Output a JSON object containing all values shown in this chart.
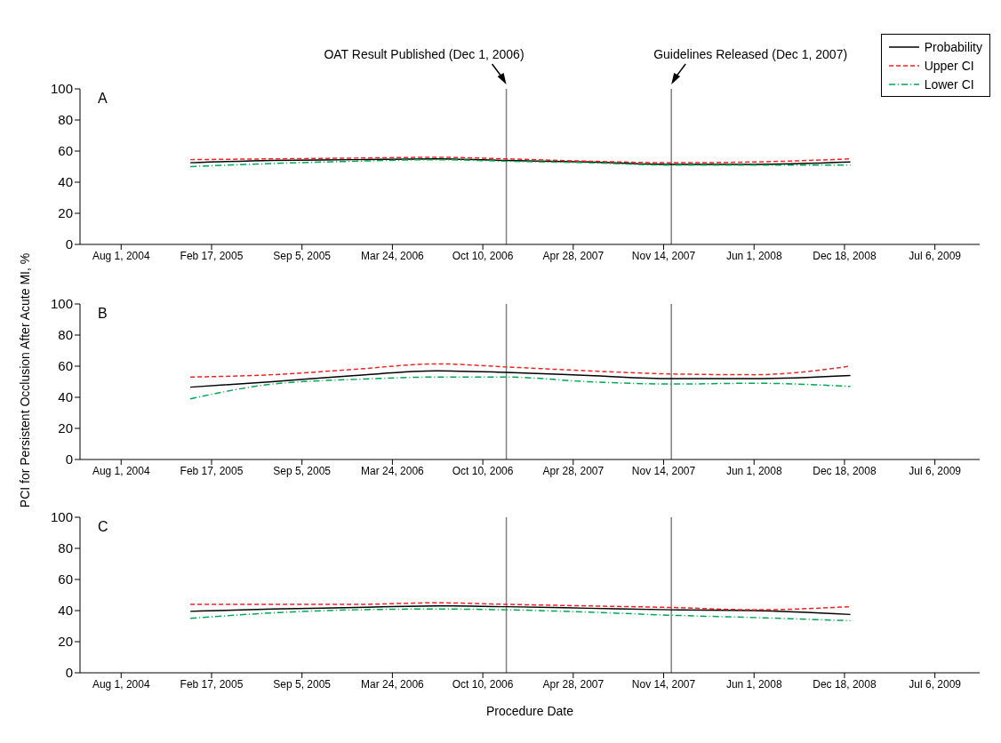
{
  "chart_data": [
    {
      "type": "line",
      "title": "A",
      "x": [
        "2005-01-01",
        "2005-07-01",
        "2006-01-01",
        "2006-07-01",
        "2006-12-01",
        "2007-06-01",
        "2007-12-01",
        "2008-06-01",
        "2008-12-31"
      ],
      "series": [
        {
          "name": "Probability",
          "color": "#000000",
          "line_style": "solid",
          "values": [
            52.5,
            54,
            54.5,
            55,
            54,
            53,
            51.5,
            51.5,
            53
          ]
        },
        {
          "name": "Upper CI",
          "color": "#e8262a",
          "line_style": "dashed",
          "values": [
            54.5,
            55,
            55.5,
            56,
            55,
            53.5,
            52.5,
            53,
            55
          ]
        },
        {
          "name": "Lower CI",
          "color": "#00a651",
          "line_style": "dashdot",
          "values": [
            50,
            52,
            53.5,
            54.5,
            53.5,
            52.5,
            51,
            51,
            51
          ]
        }
      ],
      "xlim": [
        "2004-05-02",
        "2009-10-13"
      ],
      "xticks": [
        {
          "value": "2004-08-01",
          "label": "Aug 1, 2004"
        },
        {
          "value": "2005-02-17",
          "label": "Feb 17, 2005"
        },
        {
          "value": "2005-09-05",
          "label": "Sep 5, 2005"
        },
        {
          "value": "2006-03-24",
          "label": "Mar 24, 2006"
        },
        {
          "value": "2006-10-10",
          "label": "Oct 10, 2006"
        },
        {
          "value": "2007-04-28",
          "label": "Apr 28, 2007"
        },
        {
          "value": "2007-11-14",
          "label": "Nov 14, 2007"
        },
        {
          "value": "2008-06-01",
          "label": "Jun 1, 2008"
        },
        {
          "value": "2008-12-18",
          "label": "Dec 18, 2008"
        },
        {
          "value": "2009-07-06",
          "label": "Jul 6, 2009"
        }
      ],
      "ylim": [
        0,
        100
      ],
      "yticks": [
        0,
        20,
        40,
        60,
        80,
        100
      ],
      "ref_lines": [
        {
          "axis": "x",
          "value": "2006-12-01",
          "label": "OAT Result Published (Dec 1, 2006)",
          "color": "#808080"
        },
        {
          "axis": "x",
          "value": "2007-12-01",
          "label": "Guidelines Released (Dec 1, 2007)",
          "color": "#808080"
        }
      ],
      "legend": "top right",
      "grid": false
    },
    {
      "type": "line",
      "title": "B",
      "ylabel": "PCI for Persistent Occlusion After Acute MI, %",
      "x": [
        "2005-01-01",
        "2005-07-01",
        "2006-01-01",
        "2006-07-01",
        "2006-12-01",
        "2007-06-01",
        "2007-12-01",
        "2008-06-01",
        "2008-12-31"
      ],
      "series": [
        {
          "color": "#000000",
          "line_style": "solid",
          "values": [
            46.5,
            50,
            54,
            57,
            56,
            54,
            52,
            52,
            54
          ]
        },
        {
          "color": "#e8262a",
          "line_style": "dashed",
          "values": [
            53,
            54.5,
            58,
            61.5,
            59.5,
            57,
            55,
            54.5,
            60
          ]
        },
        {
          "color": "#00a651",
          "line_style": "dashdot",
          "values": [
            39,
            48.5,
            51.5,
            53,
            53,
            50,
            48.5,
            49,
            47
          ]
        }
      ],
      "xlim": [
        "2004-05-02",
        "2009-10-13"
      ],
      "xticks": [
        {
          "value": "2004-08-01",
          "label": "Aug 1, 2004"
        },
        {
          "value": "2005-02-17",
          "label": "Feb 17, 2005"
        },
        {
          "value": "2005-09-05",
          "label": "Sep 5, 2005"
        },
        {
          "value": "2006-03-24",
          "label": "Mar 24, 2006"
        },
        {
          "value": "2006-10-10",
          "label": "Oct 10, 2006"
        },
        {
          "value": "2007-04-28",
          "label": "Apr 28, 2007"
        },
        {
          "value": "2007-11-14",
          "label": "Nov 14, 2007"
        },
        {
          "value": "2008-06-01",
          "label": "Jun 1, 2008"
        },
        {
          "value": "2008-12-18",
          "label": "Dec 18, 2008"
        },
        {
          "value": "2009-07-06",
          "label": "Jul 6, 2009"
        }
      ],
      "ylim": [
        0,
        100
      ],
      "yticks": [
        0,
        20,
        40,
        60,
        80,
        100
      ],
      "ref_lines": [
        {
          "axis": "x",
          "value": "2006-12-01",
          "color": "#808080"
        },
        {
          "axis": "x",
          "value": "2007-12-01",
          "color": "#808080"
        }
      ],
      "grid": false
    },
    {
      "type": "line",
      "title": "C",
      "xlabel": "Procedure Date",
      "x": [
        "2005-01-01",
        "2005-07-01",
        "2006-01-01",
        "2006-07-01",
        "2006-12-01",
        "2007-06-01",
        "2007-12-01",
        "2008-06-01",
        "2008-12-31"
      ],
      "series": [
        {
          "color": "#000000",
          "line_style": "solid",
          "values": [
            39.5,
            41,
            42,
            43,
            42.5,
            41.5,
            40.5,
            40,
            37.5
          ]
        },
        {
          "color": "#e8262a",
          "line_style": "dashed",
          "values": [
            44,
            44,
            44,
            45,
            44,
            43,
            42,
            40.5,
            42.5
          ]
        },
        {
          "color": "#00a651",
          "line_style": "dashdot",
          "values": [
            35,
            38.5,
            40.5,
            41,
            40.5,
            39,
            37,
            35.5,
            33.5
          ]
        }
      ],
      "xlim": [
        "2004-05-02",
        "2009-10-13"
      ],
      "xticks": [
        {
          "value": "2004-08-01",
          "label": "Aug 1, 2004"
        },
        {
          "value": "2005-02-17",
          "label": "Feb 17, 2005"
        },
        {
          "value": "2005-09-05",
          "label": "Sep 5, 2005"
        },
        {
          "value": "2006-03-24",
          "label": "Mar 24, 2006"
        },
        {
          "value": "2006-10-10",
          "label": "Oct 10, 2006"
        },
        {
          "value": "2007-04-28",
          "label": "Apr 28, 2007"
        },
        {
          "value": "2007-11-14",
          "label": "Nov 14, 2007"
        },
        {
          "value": "2008-06-01",
          "label": "Jun 1, 2008"
        },
        {
          "value": "2008-12-18",
          "label": "Dec 18, 2008"
        },
        {
          "value": "2009-07-06",
          "label": "Jul 6, 2009"
        }
      ],
      "ylim": [
        0,
        100
      ],
      "yticks": [
        0,
        20,
        40,
        60,
        80,
        100
      ],
      "ref_lines": [
        {
          "axis": "x",
          "value": "2006-12-01",
          "color": "#808080"
        },
        {
          "axis": "x",
          "value": "2007-12-01",
          "color": "#808080"
        }
      ],
      "grid": false
    }
  ]
}
